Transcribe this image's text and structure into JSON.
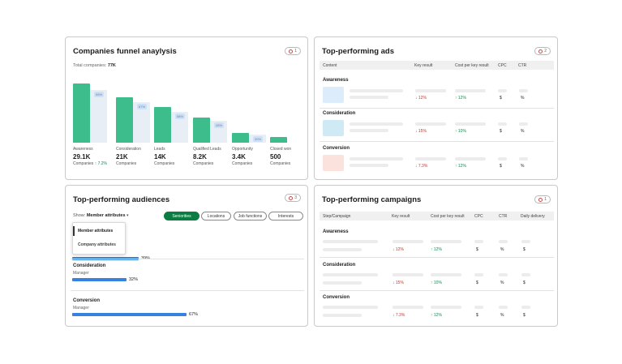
{
  "funnel": {
    "title": "Companies funnel anaylysis",
    "badge": "1",
    "total_label": "Total companies: ",
    "total_value": "77K",
    "stages": [
      {
        "name": "Awareness",
        "value": "29.1K",
        "sub": "Companies",
        "trend": "↑ 7.2%",
        "pct": "55%"
      },
      {
        "name": "Consideration",
        "value": "21K",
        "sub": "Companies",
        "trend": "",
        "pct": "67%"
      },
      {
        "name": "Leads",
        "value": "14K",
        "sub": "Companies",
        "trend": "",
        "pct": "58%"
      },
      {
        "name": "Qualified Leads",
        "value": "8.2K",
        "sub": "Companies",
        "trend": "",
        "pct": "28%"
      },
      {
        "name": "Opportunity",
        "value": "3.4K",
        "sub": "Companies",
        "trend": "",
        "pct": "20%"
      },
      {
        "name": "Closed won",
        "value": "500",
        "sub": "Companies",
        "trend": "",
        "pct": ""
      }
    ]
  },
  "ads": {
    "title": "Top-performing ads",
    "badge": "2",
    "headers": [
      "Content",
      "Key result",
      "Cost per key result",
      "CPC",
      "CTR"
    ],
    "groups": [
      {
        "label": "Awareness",
        "key_result": "↓ 12%",
        "cost": "↑ 12%",
        "cpc": "$",
        "ctr": "%",
        "thumb_color": "#dcecfb"
      },
      {
        "label": "Consideration",
        "key_result": "↓ 15%",
        "cost": "↑ 10%",
        "cpc": "$",
        "ctr": "%",
        "thumb_color": "#cfeaf5"
      },
      {
        "label": "Conversion",
        "key_result": "↓ 7.3%",
        "cost": "↑ 12%",
        "cpc": "$",
        "ctr": "%",
        "thumb_color": "#fbe2dc"
      }
    ]
  },
  "audiences": {
    "title": "Top-performing audiences",
    "badge": "3",
    "show_label": "Show:",
    "show_value": "Member attributes",
    "chips": [
      "Seniorities",
      "Locations",
      "Job functions",
      "Interests"
    ],
    "dropdown": [
      "Member attributes",
      "Company attributes"
    ],
    "rows": [
      {
        "label": "",
        "sub": "",
        "pct": "39%",
        "fraction": 0.39
      },
      {
        "label": "Consideration",
        "sub": "Manager",
        "pct": "32%",
        "fraction": 0.32
      },
      {
        "label": "Conversion",
        "sub": "Manager",
        "pct": "67%",
        "fraction": 0.67
      }
    ]
  },
  "campaigns": {
    "title": "Top-performing campaigns",
    "badge": "1",
    "headers": [
      "Step/Campaign",
      "Key result",
      "Cost per key result",
      "CPC",
      "CTR",
      "Daily delivery"
    ],
    "groups": [
      {
        "label": "Awareness",
        "key_result": "↓ 12%",
        "cost": "↑ 12%",
        "cpc": "$",
        "ctr": "%",
        "daily": "$"
      },
      {
        "label": "Consideration",
        "key_result": "↓ 15%",
        "cost": "↑ 10%",
        "cpc": "$",
        "ctr": "%",
        "daily": "$"
      },
      {
        "label": "Conversion",
        "key_result": "↓ 7.3%",
        "cost": "↑ 12%",
        "cpc": "$",
        "ctr": "%",
        "daily": "$"
      }
    ]
  }
}
